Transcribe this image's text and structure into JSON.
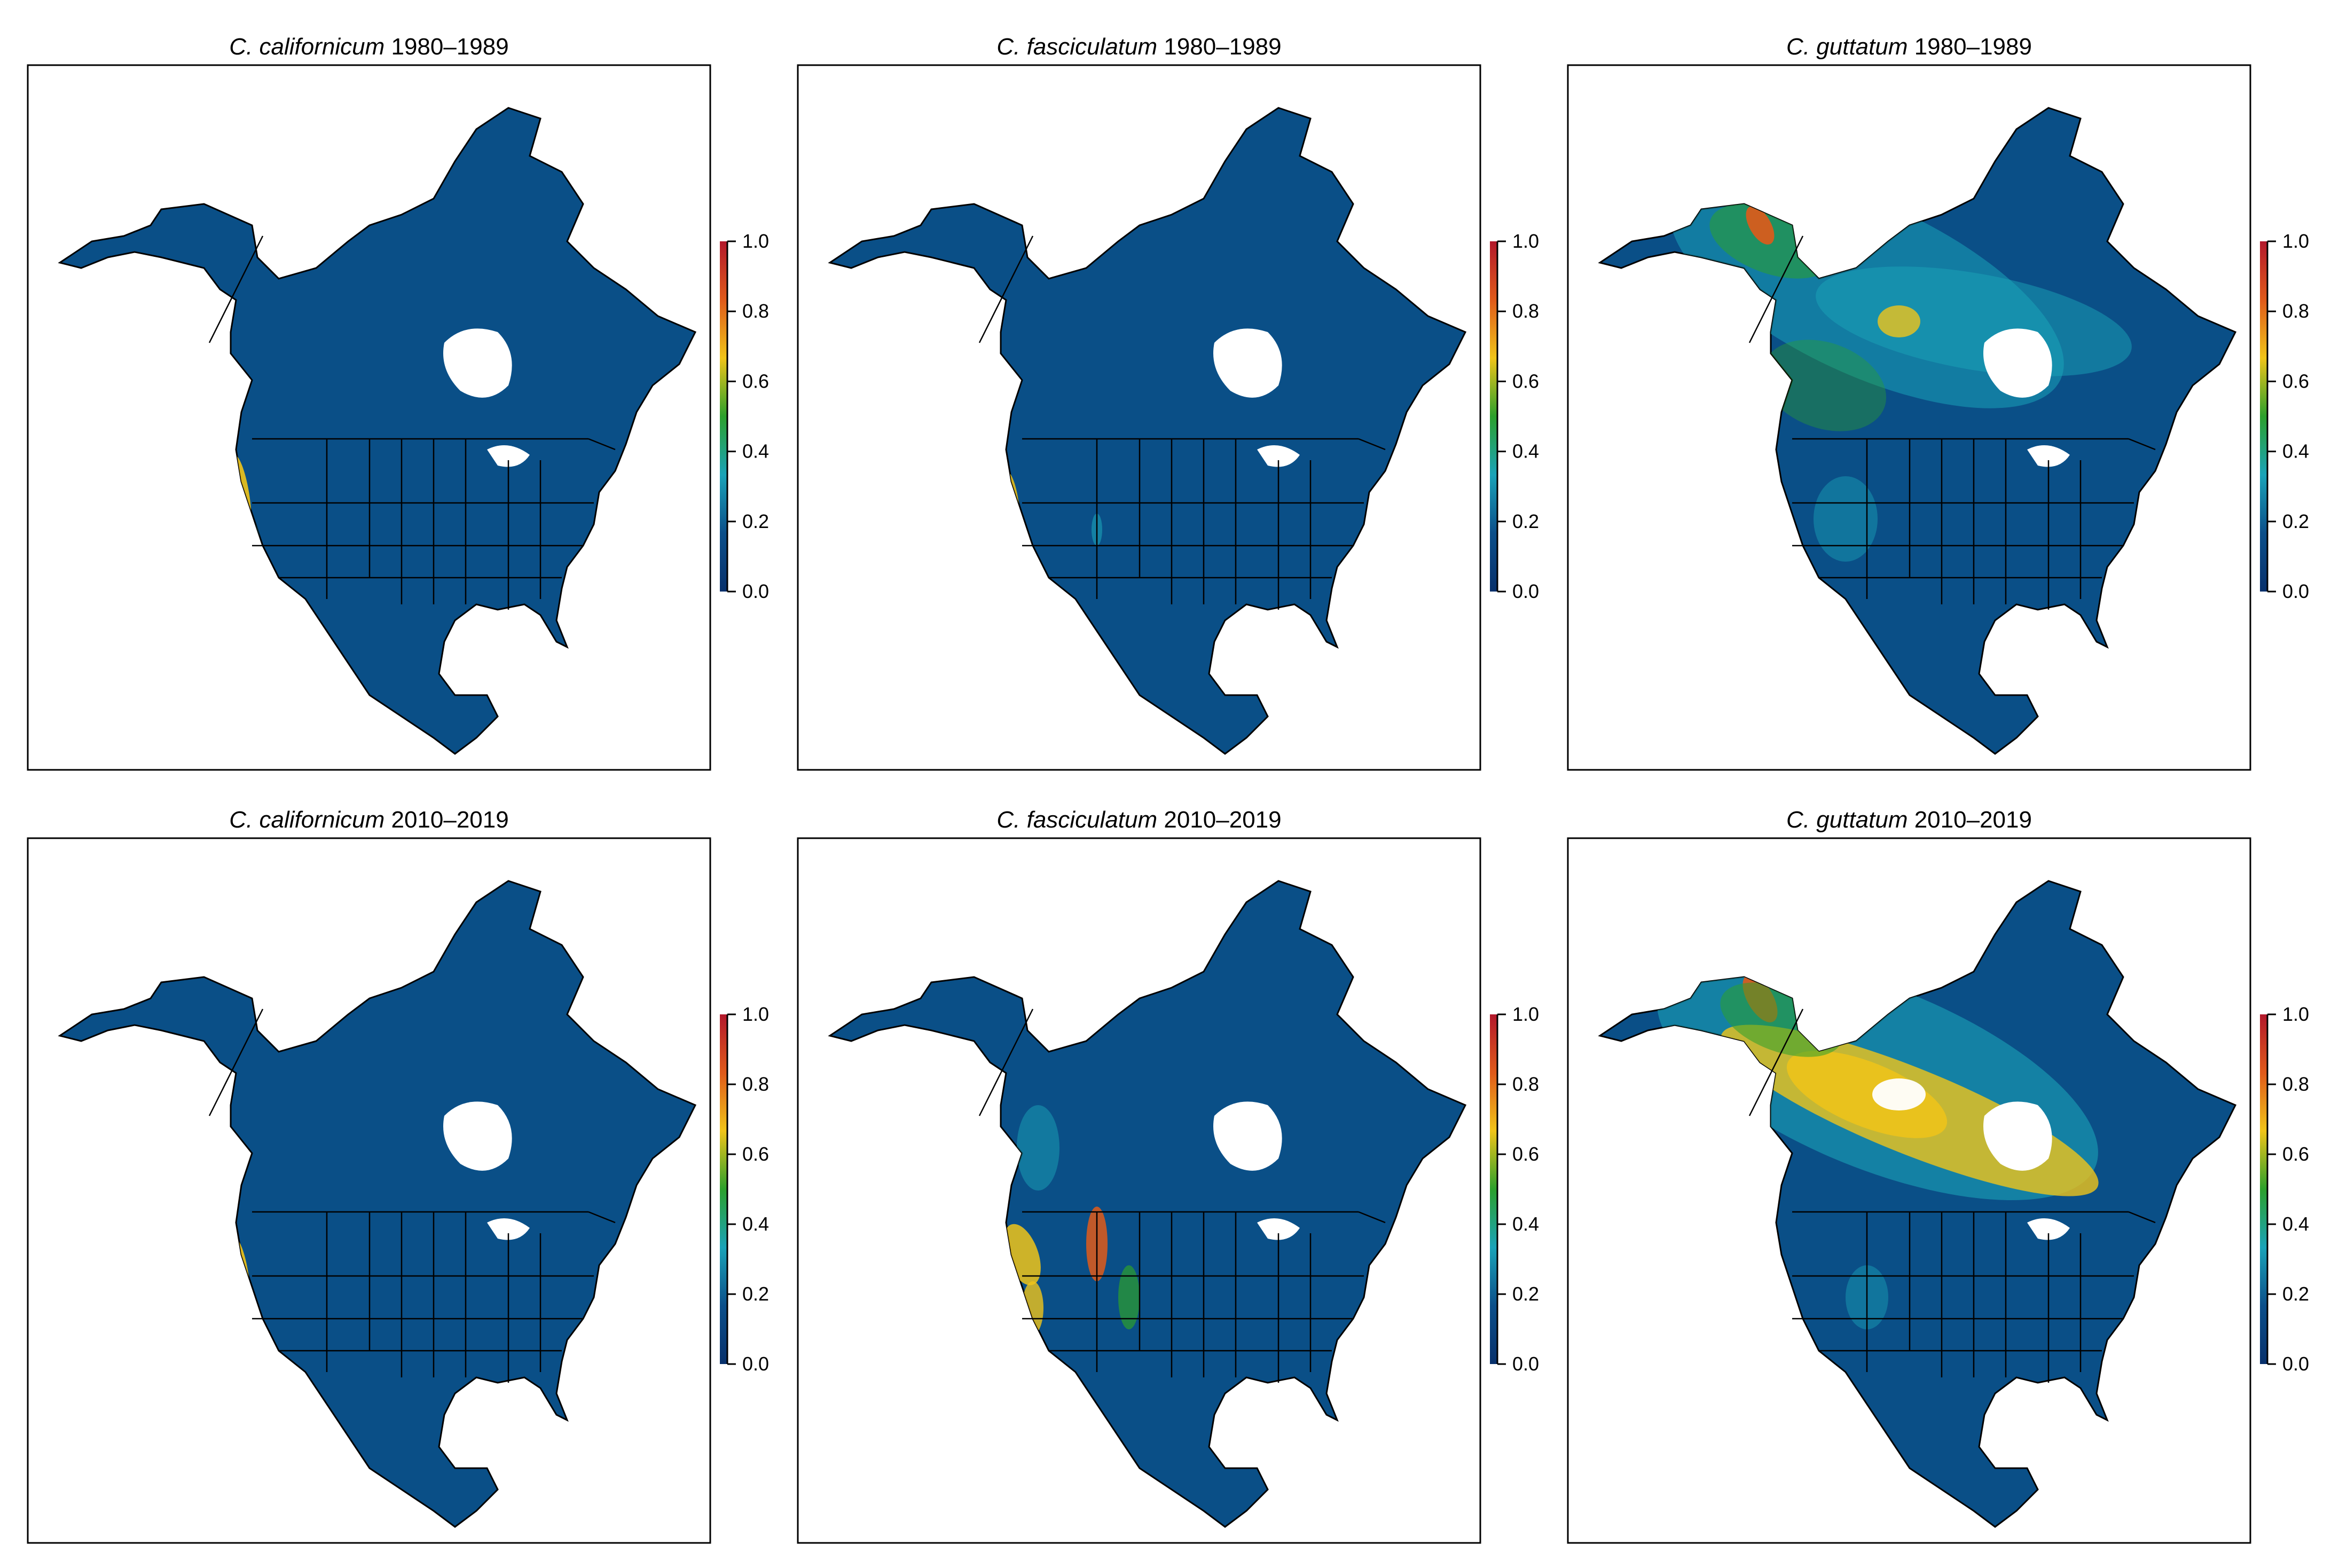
{
  "figure": {
    "panels": [
      {
        "species": "C. californicum",
        "period": "1980–1989",
        "pattern": "californicum_early"
      },
      {
        "species": "C. fasciculatum",
        "period": "1980–1989",
        "pattern": "fasciculatum_early"
      },
      {
        "species": "C. guttatum",
        "period": "1980–1989",
        "pattern": "guttatum_early"
      },
      {
        "species": "C. californicum",
        "period": "2010–2019",
        "pattern": "californicum_late"
      },
      {
        "species": "C. fasciculatum",
        "period": "2010–2019",
        "pattern": "fasciculatum_late"
      },
      {
        "species": "C. guttatum",
        "period": "2010–2019",
        "pattern": "guttatum_late"
      }
    ],
    "colorbar": {
      "ticks": [
        "0.0",
        "0.2",
        "0.4",
        "0.6",
        "0.8",
        "1.0"
      ],
      "colors": [
        "#08306b",
        "#0b4f8a",
        "#1aa3b8",
        "#2ca02c",
        "#f0c419",
        "#e05a1a",
        "#b2182b"
      ]
    },
    "map_colors": {
      "background": "#0a4f87",
      "border_line": "#000000",
      "water": "#ffffff"
    }
  }
}
